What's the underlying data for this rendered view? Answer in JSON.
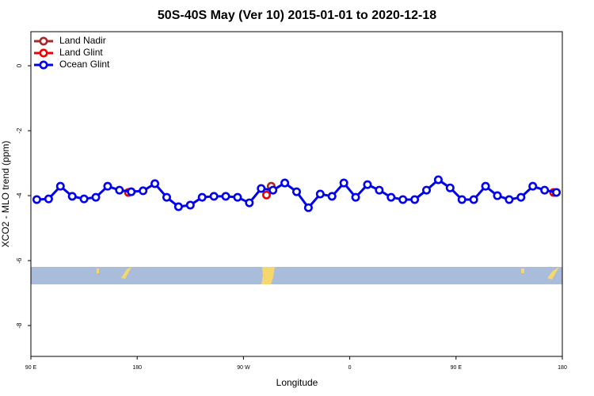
{
  "chart_data": {
    "type": "line",
    "title": "50S-40S May (Ver 10)   2015-01-01 to 2020-12-18",
    "x_label": "Longitude",
    "y_label": "XCO2 - MLO trend (ppm)",
    "xlim": [
      90,
      540
    ],
    "ylim": [
      -8.95,
      1.05
    ],
    "xticks": [
      {
        "value": 90,
        "label": "90 E"
      },
      {
        "value": 180,
        "label": "180"
      },
      {
        "value": 270,
        "label": "90 W"
      },
      {
        "value": 360,
        "label": "0"
      },
      {
        "value": 450,
        "label": "90 E"
      },
      {
        "value": 540,
        "label": "180"
      }
    ],
    "yticks": [
      0,
      -2,
      -4,
      -6,
      -8
    ],
    "legend": "top-left",
    "series": [
      {
        "name": "Land Nadir",
        "color": "#a52a2a",
        "line": false,
        "x": [
          293.5
        ],
        "values": [
          -3.71
        ]
      },
      {
        "name": "Land Glint",
        "color": "#ee0000",
        "line": false,
        "x": [
          172.6,
          289.5,
          532.6
        ],
        "values": [
          -3.9,
          -3.98,
          -3.9
        ]
      },
      {
        "name": "Ocean Glint",
        "color": "#0000ee",
        "line": true,
        "x": [
          95,
          105,
          115,
          125,
          135,
          145,
          155,
          165,
          175,
          185,
          195,
          205,
          215,
          225,
          235,
          245,
          255,
          265,
          275,
          285,
          295,
          305,
          315,
          325,
          335,
          345,
          355,
          365,
          375,
          385,
          395,
          405,
          415,
          425,
          435,
          445,
          455,
          465,
          475,
          485,
          495,
          505,
          515,
          525,
          535
        ],
        "values": [
          -4.12,
          -4.1,
          -3.71,
          -4.02,
          -4.1,
          -4.05,
          -3.71,
          -3.83,
          -3.88,
          -3.85,
          -3.63,
          -4.05,
          -4.34,
          -4.29,
          -4.05,
          -4.02,
          -4.02,
          -4.05,
          -4.22,
          -3.78,
          -3.83,
          -3.61,
          -3.88,
          -4.37,
          -3.95,
          -4.02,
          -3.61,
          -4.05,
          -3.66,
          -3.83,
          -4.05,
          -4.12,
          -4.12,
          -3.83,
          -3.51,
          -3.76,
          -4.12,
          -4.12,
          -3.71,
          -4.0,
          -4.12,
          -4.05,
          -3.71,
          -3.83,
          -3.9
        ]
      }
    ]
  }
}
